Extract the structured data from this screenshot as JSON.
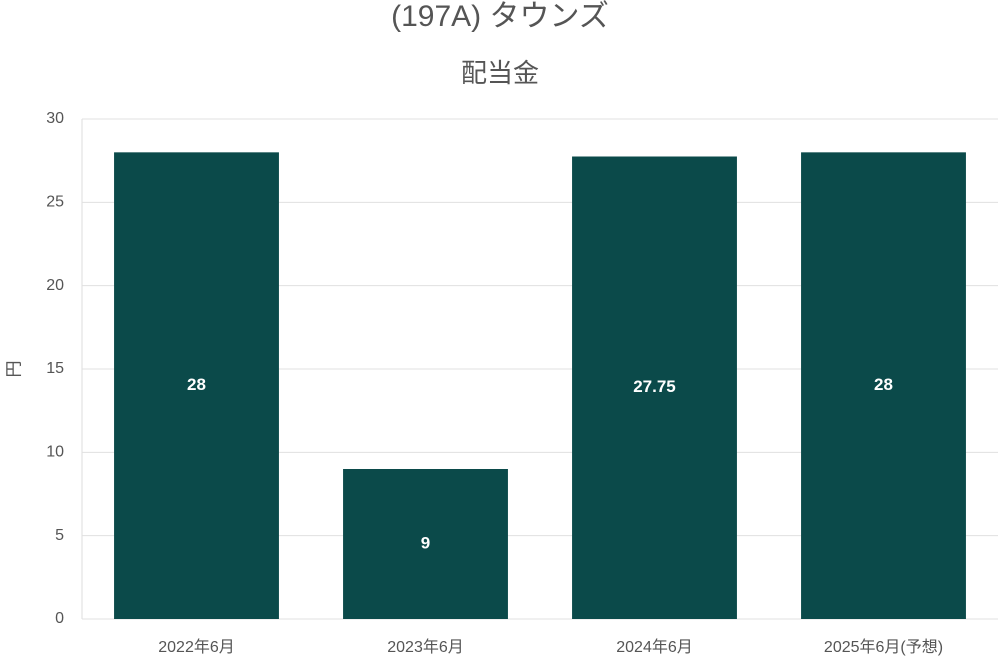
{
  "chart_data": {
    "type": "bar",
    "title": "(197A) タウンズ",
    "subtitle": "配当金",
    "y_label": "円",
    "categories": [
      "2022年6月",
      "2023年6月",
      "2024年6月",
      "2025年6月(予想)"
    ],
    "values": [
      28,
      9,
      27.75,
      28
    ],
    "color": "#0b4a4a",
    "ylim": [
      0,
      30
    ],
    "yticks": [
      0,
      5,
      10,
      15,
      20,
      25,
      30
    ],
    "grid": true
  }
}
